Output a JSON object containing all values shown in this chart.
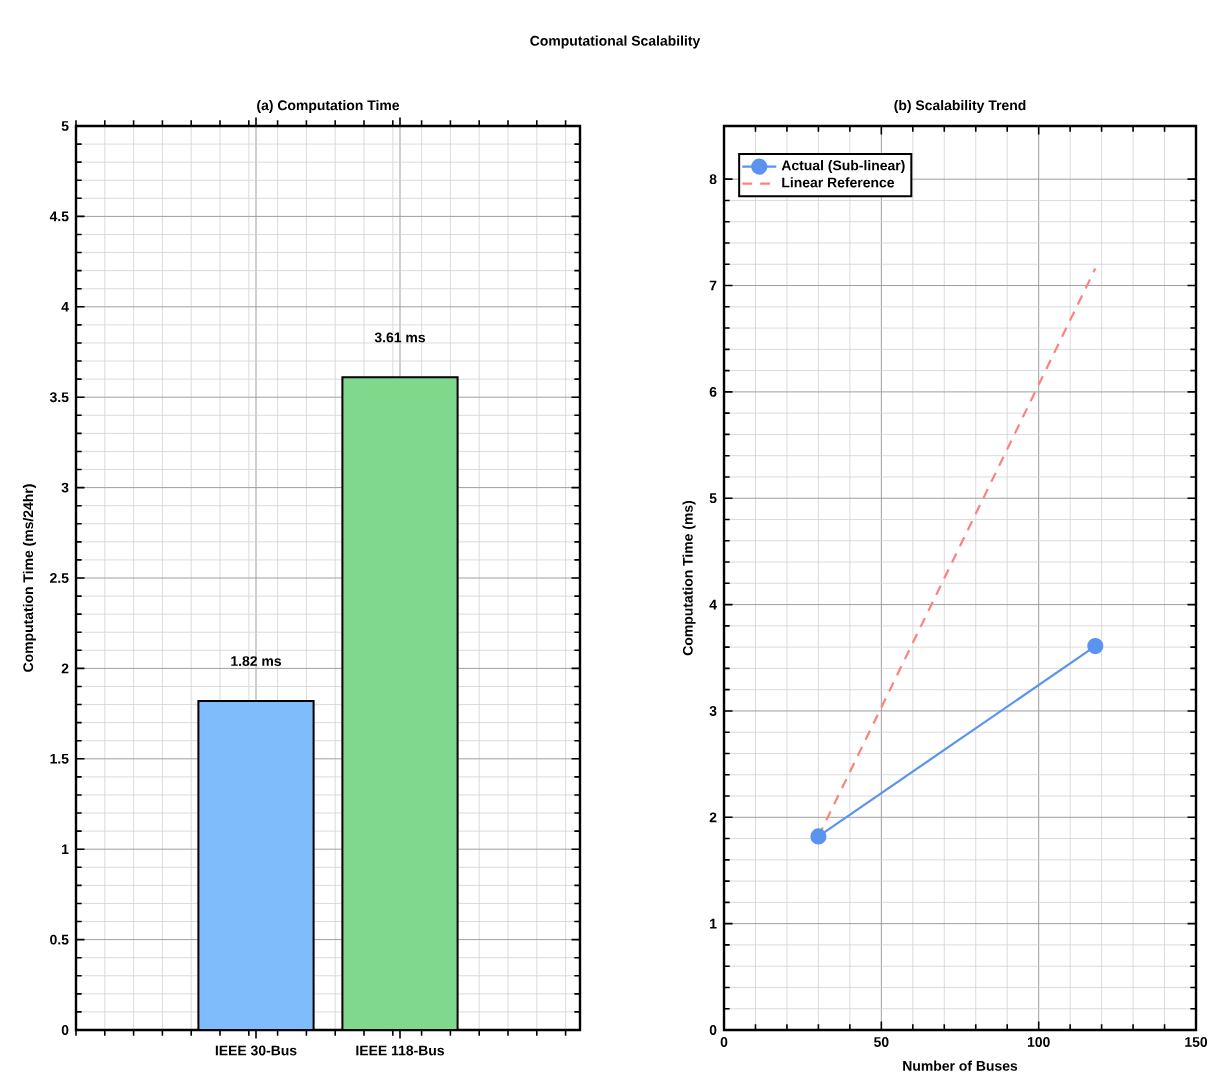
{
  "chart_data": [
    {
      "type": "bar",
      "title": "Computational Scalability",
      "subtitle": "(a) Computation Time",
      "ylabel": "Computation Time (ms/24hr)",
      "categories": [
        "IEEE 30-Bus",
        "IEEE 118-Bus"
      ],
      "values": [
        1.82,
        3.61
      ],
      "colors": [
        "#7fbcfb",
        "#80d88c"
      ],
      "value_labels": [
        "1.82 ms",
        "3.61 ms"
      ],
      "ylim": [
        0,
        5
      ],
      "yticks": [
        0,
        0.5,
        1,
        1.5,
        2,
        2.5,
        3,
        3.5,
        4,
        4.5,
        5
      ],
      "grid": true
    },
    {
      "type": "line",
      "title": "(b) Scalability Trend",
      "xlabel": "Number of Buses",
      "ylabel": "Computation Time (ms)",
      "x": [
        30,
        118
      ],
      "series": [
        {
          "name": "Actual (Sub-linear)",
          "color": "#5b93f0",
          "values": [
            1.82,
            3.61
          ],
          "marker": "circle",
          "line_style": "solid"
        },
        {
          "name": "Linear Reference",
          "color": "#ff8080",
          "values": [
            1.82,
            7.16
          ],
          "marker": "none",
          "line_style": "dashed"
        }
      ],
      "xlim": [
        0,
        150
      ],
      "xticks": [
        0,
        50,
        100,
        150
      ],
      "ylim": [
        0,
        8.5
      ],
      "yticks": [
        0,
        1,
        2,
        3,
        4,
        5,
        6,
        7,
        8
      ],
      "grid": true,
      "legend": "top left"
    }
  ]
}
